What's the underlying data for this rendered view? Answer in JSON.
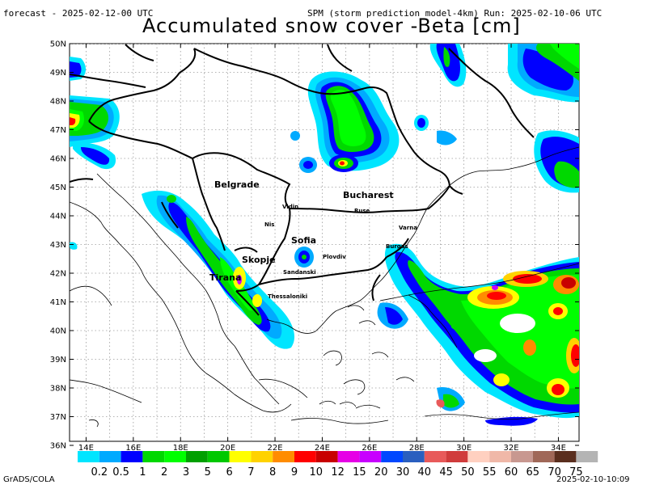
{
  "header": {
    "forecast": "forecast - 2025-02-12-00 UTC",
    "model": "SPM (storm prediction model-4km) Run: 2025-02-10-06 UTC",
    "title": "Accumulated snow cover -Beta [cm]"
  },
  "axes": {
    "lat_labels": [
      "50N",
      "49N",
      "48N",
      "47N",
      "46N",
      "45N",
      "44N",
      "43N",
      "42N",
      "41N",
      "40N",
      "39N",
      "38N",
      "37N",
      "36N"
    ],
    "lon_labels": [
      "14E",
      "16E",
      "18E",
      "20E",
      "22E",
      "24E",
      "26E",
      "28E",
      "30E",
      "32E",
      "34E"
    ]
  },
  "cities": [
    {
      "name": "Belgrade",
      "size": 11
    },
    {
      "name": "Bucharest",
      "size": 11
    },
    {
      "name": "Vidin",
      "size": 7
    },
    {
      "name": "Ruse",
      "size": 7
    },
    {
      "name": "Nis",
      "size": 7
    },
    {
      "name": "Varna",
      "size": 7
    },
    {
      "name": "Sofia",
      "size": 11
    },
    {
      "name": "Burgas",
      "size": 7
    },
    {
      "name": "Plovdiv",
      "size": 7
    },
    {
      "name": "Skopje",
      "size": 11
    },
    {
      "name": "Sandanski",
      "size": 7
    },
    {
      "name": "Tirana",
      "size": 11
    },
    {
      "name": "Thessaloniki",
      "size": 7
    }
  ],
  "legend": {
    "labels": [
      "0.2",
      "0.5",
      "1",
      "2",
      "3",
      "5",
      "6",
      "7",
      "8",
      "9",
      "10",
      "12",
      "15",
      "20",
      "30",
      "40",
      "45",
      "50",
      "55",
      "60",
      "65",
      "70",
      "75"
    ],
    "colors": [
      "#00e5ff",
      "#00aaff",
      "#0000ff",
      "#00d800",
      "#00ff00",
      "#00a000",
      "#00c800",
      "#ffff00",
      "#ffd200",
      "#ff8c00",
      "#ff0000",
      "#c80000",
      "#e600e6",
      "#c800ff",
      "#0048ff",
      "#2a5fbf",
      "#e85a5a",
      "#d03c3c",
      "#ffd0c0",
      "#f0b8a8",
      "#c89890",
      "#a06858",
      "#5a2e1e",
      "#b4b4b4"
    ]
  },
  "footer": {
    "left": "GrADS/COLA",
    "right": "2025-02-10-10:09"
  }
}
